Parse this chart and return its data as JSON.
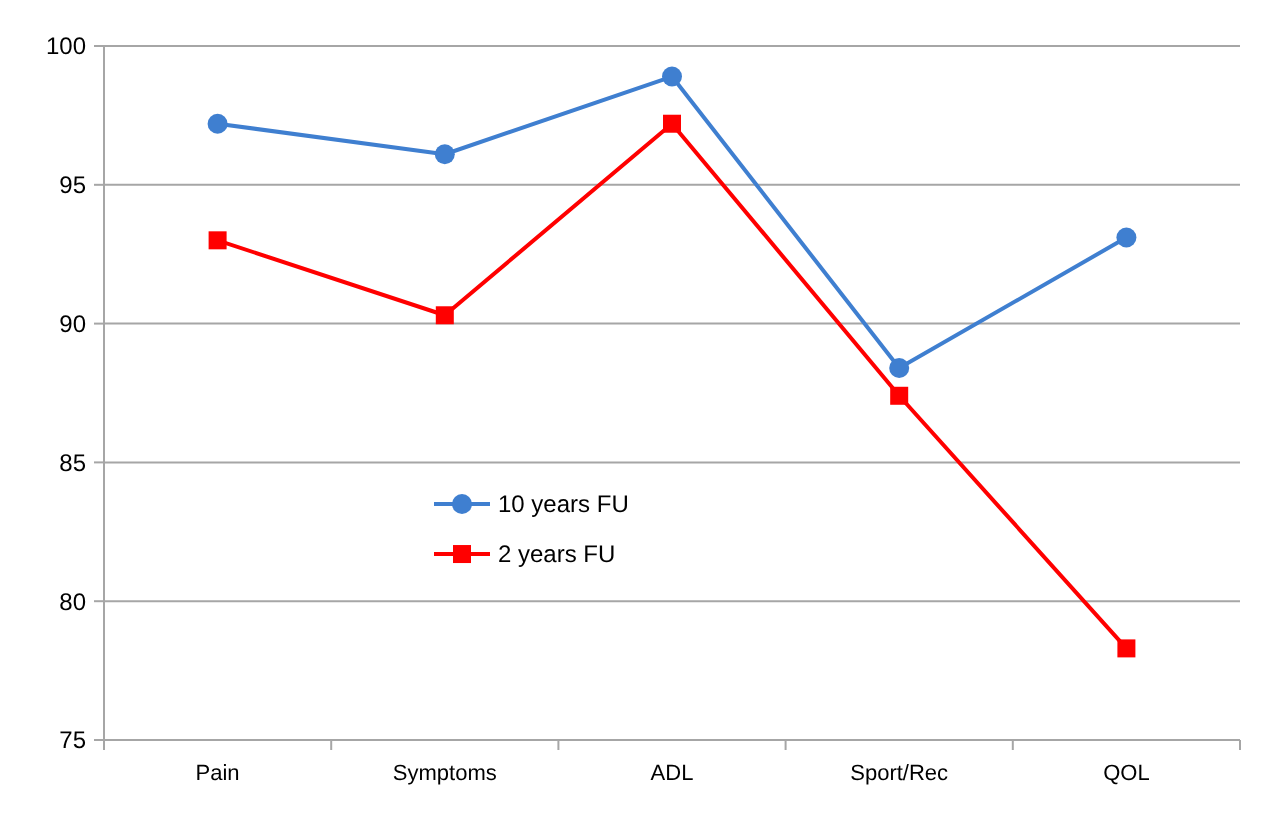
{
  "chart_data": {
    "type": "line",
    "categories": [
      "Pain",
      "Symptoms",
      "ADL",
      "Sport/Rec",
      "QOL"
    ],
    "series": [
      {
        "name": "10 years FU",
        "color": "#3f7fd0",
        "marker": "circle",
        "values": [
          97.2,
          96.1,
          98.9,
          88.4,
          93.1
        ]
      },
      {
        "name": "2 years FU",
        "color": "#ff0000",
        "marker": "square",
        "values": [
          93.0,
          90.3,
          97.2,
          87.4,
          78.3
        ]
      }
    ],
    "ylim": [
      75,
      100
    ],
    "yticks": [
      75,
      80,
      85,
      90,
      95,
      100
    ],
    "grid": "y",
    "legend": "center"
  }
}
